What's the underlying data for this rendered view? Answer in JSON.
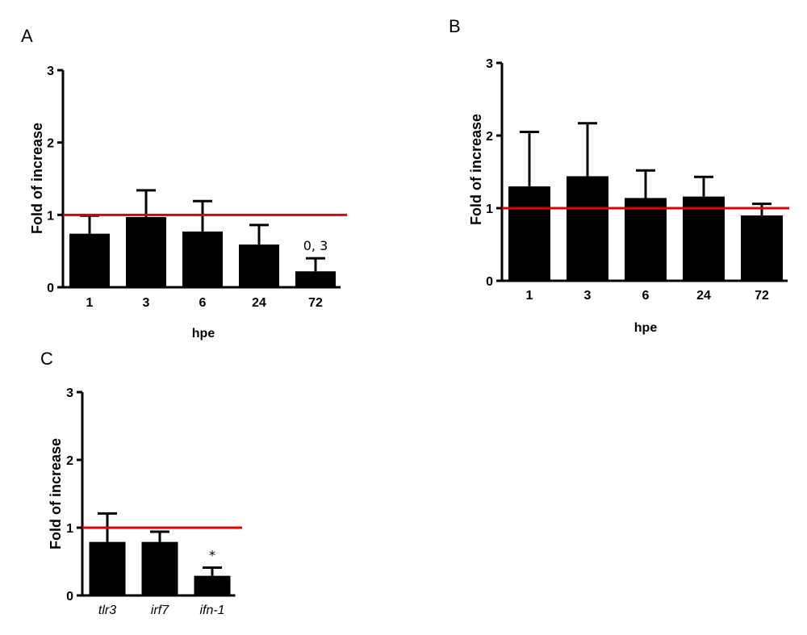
{
  "colors": {
    "bar": "#000000",
    "reference_line": "#e00000",
    "axis": "#000000"
  },
  "chart_data": [
    {
      "panel": "A",
      "type": "bar",
      "categories": [
        "1",
        "3",
        "6",
        "24",
        "72"
      ],
      "values": [
        0.74,
        0.97,
        0.77,
        0.59,
        0.22
      ],
      "errors": [
        0.25,
        0.37,
        0.42,
        0.27,
        0.18
      ],
      "reference_line": 1,
      "annotations": [
        {
          "category": "72",
          "text": "0, 3"
        }
      ],
      "ylabel": "Fold of increase",
      "xlabel": "hpe",
      "ylim": [
        0,
        3
      ],
      "yticks": [
        "0",
        "1",
        "2",
        "3"
      ],
      "italic_categories": false
    },
    {
      "panel": "B",
      "type": "bar",
      "categories": [
        "1",
        "3",
        "6",
        "24",
        "72"
      ],
      "values": [
        1.3,
        1.44,
        1.14,
        1.16,
        0.9
      ],
      "errors": [
        0.75,
        0.73,
        0.38,
        0.27,
        0.16
      ],
      "reference_line": 1,
      "annotations": [],
      "ylabel": "Fold of increase",
      "xlabel": "hpe",
      "ylim": [
        0,
        3
      ],
      "yticks": [
        "0",
        "1",
        "2",
        "3"
      ],
      "italic_categories": false
    },
    {
      "panel": "C",
      "type": "bar",
      "categories": [
        "tlr3",
        "irf7",
        "ifn-1"
      ],
      "values": [
        0.79,
        0.79,
        0.29
      ],
      "errors": [
        0.42,
        0.15,
        0.12
      ],
      "reference_line": 1,
      "annotations": [
        {
          "category": "ifn-1",
          "text": "*"
        }
      ],
      "ylabel": "Fold of increase",
      "xlabel": "",
      "ylim": [
        0,
        3
      ],
      "yticks": [
        "0",
        "1",
        "2",
        "3"
      ],
      "italic_categories": true
    }
  ]
}
